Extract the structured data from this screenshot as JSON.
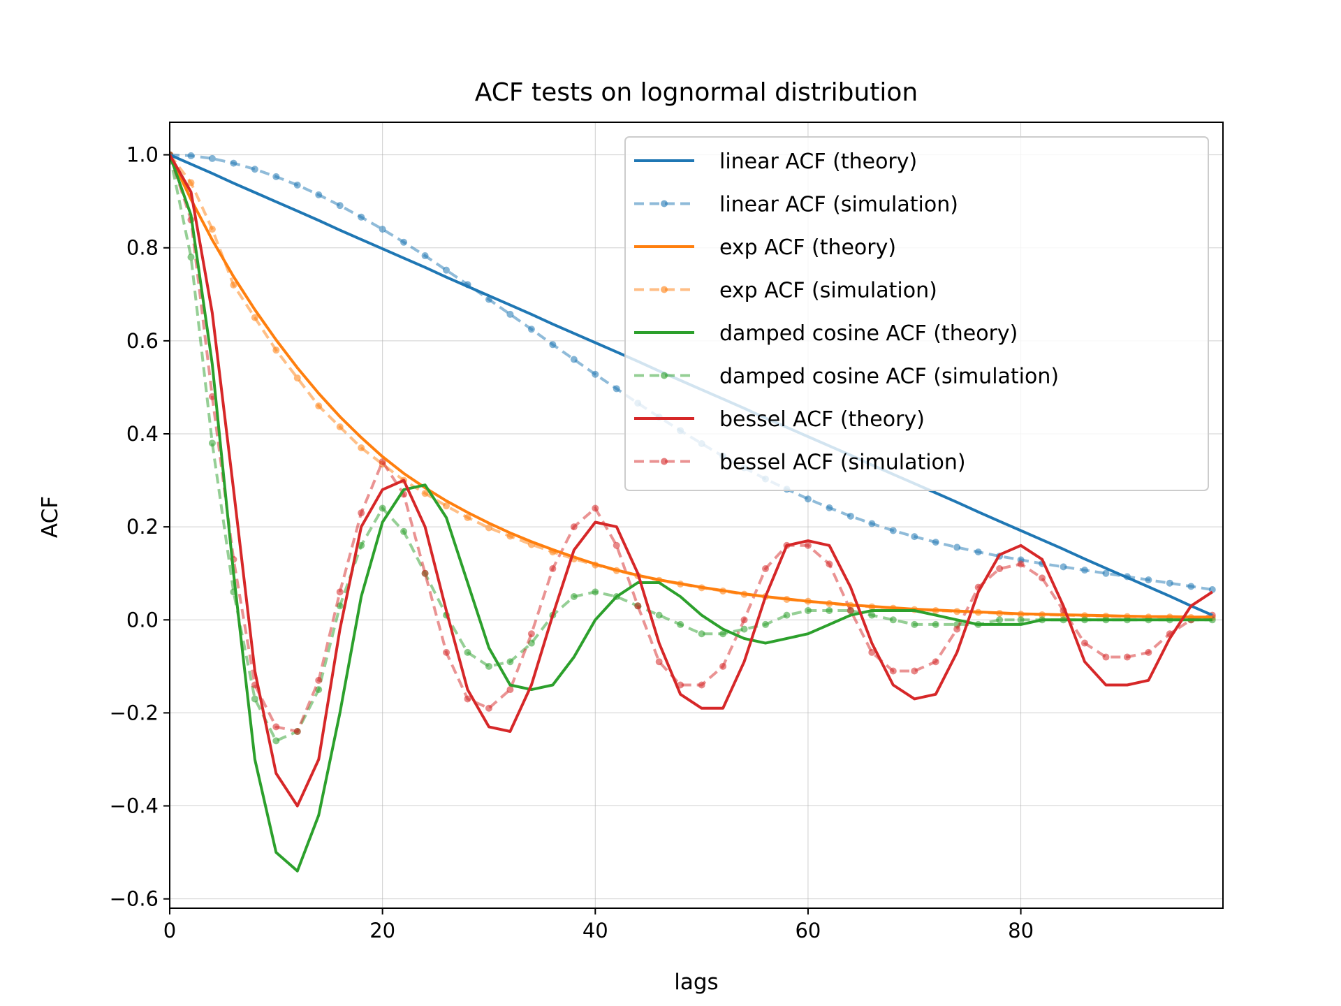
{
  "chart_data": {
    "type": "line",
    "title": "ACF tests on lognormal distribution",
    "xlabel": "lags",
    "ylabel": "ACF",
    "xlim": [
      0,
      99
    ],
    "ylim": [
      -0.62,
      1.07
    ],
    "grid": true,
    "legend_position": "top-right",
    "x_ticks": [
      0,
      20,
      40,
      60,
      80
    ],
    "x_tick_labels": [
      "0",
      "20",
      "40",
      "60",
      "80"
    ],
    "y_ticks": [
      -0.6,
      -0.4,
      -0.2,
      0.0,
      0.2,
      0.4,
      0.6,
      0.8,
      1.0
    ],
    "y_tick_labels": [
      "−0.6",
      "−0.4",
      "−0.2",
      "0.0",
      "0.2",
      "0.4",
      "0.6",
      "0.8",
      "1.0"
    ],
    "x": [
      0,
      2,
      4,
      6,
      8,
      10,
      12,
      14,
      16,
      18,
      20,
      22,
      24,
      26,
      28,
      30,
      32,
      34,
      36,
      38,
      40,
      42,
      44,
      46,
      48,
      50,
      52,
      54,
      56,
      58,
      60,
      62,
      64,
      66,
      68,
      70,
      72,
      74,
      76,
      78,
      80,
      82,
      84,
      86,
      88,
      90,
      92,
      94,
      96,
      98
    ],
    "series": [
      {
        "name": "linear ACF (theory)",
        "color": "#1f77b4",
        "style": "solid",
        "values": [
          1.0,
          0.98,
          0.96,
          0.939,
          0.919,
          0.899,
          0.879,
          0.859,
          0.838,
          0.818,
          0.798,
          0.778,
          0.758,
          0.737,
          0.717,
          0.697,
          0.677,
          0.657,
          0.636,
          0.616,
          0.596,
          0.576,
          0.556,
          0.535,
          0.515,
          0.495,
          0.475,
          0.455,
          0.434,
          0.414,
          0.394,
          0.374,
          0.354,
          0.333,
          0.313,
          0.293,
          0.273,
          0.253,
          0.232,
          0.212,
          0.192,
          0.172,
          0.152,
          0.131,
          0.111,
          0.091,
          0.071,
          0.051,
          0.03,
          0.01
        ]
      },
      {
        "name": "linear ACF (simulation)",
        "color": "#1f77b4",
        "style": "dashed-dots",
        "values": [
          1.0,
          0.998,
          0.992,
          0.982,
          0.969,
          0.953,
          0.935,
          0.914,
          0.891,
          0.866,
          0.84,
          0.812,
          0.783,
          0.752,
          0.721,
          0.689,
          0.657,
          0.625,
          0.592,
          0.56,
          0.528,
          0.497,
          0.466,
          0.436,
          0.407,
          0.379,
          0.352,
          0.327,
          0.303,
          0.281,
          0.26,
          0.241,
          0.223,
          0.207,
          0.192,
          0.179,
          0.167,
          0.156,
          0.146,
          0.137,
          0.129,
          0.121,
          0.114,
          0.107,
          0.1,
          0.093,
          0.086,
          0.079,
          0.072,
          0.065
        ]
      },
      {
        "name": "exp ACF (theory)",
        "color": "#ff7f0e",
        "style": "solid",
        "values": [
          1.0,
          0.904,
          0.817,
          0.738,
          0.667,
          0.602,
          0.542,
          0.487,
          0.437,
          0.392,
          0.351,
          0.315,
          0.284,
          0.256,
          0.231,
          0.208,
          0.187,
          0.168,
          0.151,
          0.135,
          0.12,
          0.107,
          0.096,
          0.086,
          0.078,
          0.07,
          0.063,
          0.056,
          0.05,
          0.045,
          0.04,
          0.036,
          0.032,
          0.029,
          0.026,
          0.023,
          0.021,
          0.019,
          0.017,
          0.015,
          0.013,
          0.012,
          0.011,
          0.01,
          0.009,
          0.008,
          0.007,
          0.007,
          0.006,
          0.006
        ]
      },
      {
        "name": "exp ACF (simulation)",
        "color": "#ff7f0e",
        "style": "dashed-dots",
        "values": [
          1.0,
          0.94,
          0.84,
          0.72,
          0.65,
          0.58,
          0.52,
          0.46,
          0.415,
          0.37,
          0.335,
          0.3,
          0.272,
          0.245,
          0.22,
          0.198,
          0.18,
          0.162,
          0.146,
          0.131,
          0.118,
          0.106,
          0.095,
          0.085,
          0.077,
          0.069,
          0.062,
          0.055,
          0.05,
          0.044,
          0.04,
          0.035,
          0.031,
          0.028,
          0.025,
          0.022,
          0.02,
          0.018,
          0.016,
          0.014,
          0.012,
          0.011,
          0.01,
          0.009,
          0.008,
          0.007,
          0.006,
          0.006,
          0.005,
          0.005
        ]
      },
      {
        "name": "damped cosine ACF (theory)",
        "color": "#2ca02c",
        "style": "solid",
        "values": [
          1.0,
          0.87,
          0.55,
          0.1,
          -0.3,
          -0.5,
          -0.54,
          -0.42,
          -0.2,
          0.05,
          0.21,
          0.28,
          0.29,
          0.22,
          0.08,
          -0.06,
          -0.14,
          -0.15,
          -0.14,
          -0.08,
          0.0,
          0.05,
          0.08,
          0.08,
          0.05,
          0.01,
          -0.02,
          -0.04,
          -0.05,
          -0.04,
          -0.03,
          -0.01,
          0.01,
          0.02,
          0.02,
          0.02,
          0.01,
          0.0,
          -0.01,
          -0.01,
          -0.01,
          0.0,
          0.0,
          0.0,
          0.0,
          0.0,
          0.0,
          0.0,
          0.0,
          0.0
        ]
      },
      {
        "name": "damped cosine ACF (simulation)",
        "color": "#2ca02c",
        "style": "dashed-dots",
        "values": [
          1.0,
          0.78,
          0.38,
          0.06,
          -0.17,
          -0.26,
          -0.24,
          -0.15,
          0.03,
          0.16,
          0.24,
          0.19,
          0.1,
          0.01,
          -0.07,
          -0.1,
          -0.09,
          -0.05,
          0.01,
          0.05,
          0.06,
          0.05,
          0.03,
          0.01,
          -0.01,
          -0.03,
          -0.03,
          -0.02,
          -0.01,
          0.01,
          0.02,
          0.02,
          0.02,
          0.01,
          0.0,
          -0.01,
          -0.01,
          -0.01,
          -0.01,
          0.0,
          0.0,
          0.0,
          0.0,
          0.0,
          0.0,
          0.0,
          0.0,
          0.0,
          0.0,
          0.0
        ]
      },
      {
        "name": "bessel ACF (theory)",
        "color": "#d62728",
        "style": "solid",
        "values": [
          1.0,
          0.92,
          0.66,
          0.28,
          -0.11,
          -0.33,
          -0.4,
          -0.3,
          -0.02,
          0.2,
          0.28,
          0.3,
          0.2,
          0.02,
          -0.15,
          -0.23,
          -0.24,
          -0.14,
          0.01,
          0.15,
          0.21,
          0.2,
          0.1,
          -0.05,
          -0.16,
          -0.19,
          -0.19,
          -0.09,
          0.05,
          0.16,
          0.17,
          0.16,
          0.07,
          -0.05,
          -0.14,
          -0.17,
          -0.16,
          -0.07,
          0.06,
          0.14,
          0.16,
          0.13,
          0.03,
          -0.09,
          -0.14,
          -0.14,
          -0.13,
          -0.04,
          0.03,
          0.06
        ]
      },
      {
        "name": "bessel ACF (simulation)",
        "color": "#d62728",
        "style": "dashed-dots",
        "values": [
          1.0,
          0.86,
          0.48,
          0.13,
          -0.14,
          -0.23,
          -0.24,
          -0.13,
          0.06,
          0.23,
          0.34,
          0.27,
          0.1,
          -0.07,
          -0.17,
          -0.19,
          -0.15,
          -0.03,
          0.11,
          0.2,
          0.24,
          0.16,
          0.03,
          -0.09,
          -0.14,
          -0.14,
          -0.1,
          0.0,
          0.11,
          0.16,
          0.16,
          0.12,
          0.02,
          -0.07,
          -0.11,
          -0.11,
          -0.09,
          -0.02,
          0.07,
          0.11,
          0.12,
          0.09,
          0.02,
          -0.05,
          -0.08,
          -0.08,
          -0.07,
          -0.03,
          0.0,
          0.01
        ]
      }
    ]
  }
}
